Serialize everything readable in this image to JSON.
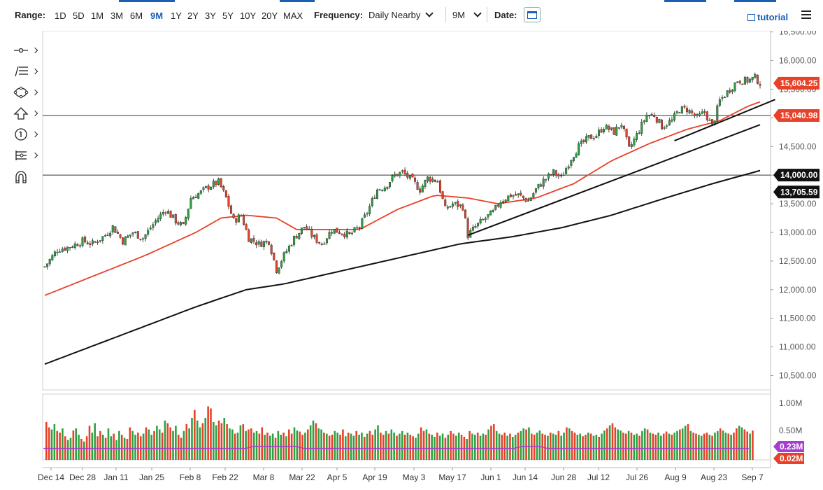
{
  "toolbar": {
    "range_label": "Range:",
    "ranges": [
      "1D",
      "5D",
      "1M",
      "3M",
      "6M",
      "9M",
      "1Y",
      "2Y",
      "3Y",
      "5Y",
      "10Y",
      "20Y",
      "MAX"
    ],
    "active_range": "9M",
    "frequency_label": "Frequency:",
    "frequency_value": "Daily Nearby",
    "period_value": "9M",
    "date_label": "Date:",
    "tutorial_label": "tutorial",
    "accent_color": "#1a5fb4"
  },
  "drawing_tools": [
    "line-tool-icon",
    "fib-tool-icon",
    "shape-tool-icon",
    "arrow-up-icon",
    "number-marker-icon",
    "node-tool-icon",
    "magnet-icon"
  ],
  "chart_data": {
    "type": "candlestick",
    "title": "",
    "x_ticks": [
      "Dec 14",
      "Dec 28",
      "Jan 11",
      "Jan 25",
      "Feb 8",
      "Feb 22",
      "Mar 8",
      "Mar 22",
      "Apr 5",
      "Apr 19",
      "May 3",
      "May 17",
      "Jun 1",
      "Jun 14",
      "Jun 28",
      "Jul 12",
      "Jul 26",
      "Aug 9",
      "Aug 23",
      "Sep 7"
    ],
    "y_ticks": [
      "16,500.00",
      "16,000.00",
      "15,500.00",
      "15,000.00",
      "14,500.00",
      "14,000.00",
      "13,500.00",
      "13,000.00",
      "12,500.00",
      "12,000.00",
      "11,500.00",
      "11,000.00",
      "10,500.00"
    ],
    "y_range": [
      10250,
      16520
    ],
    "up_color": "#2ea043",
    "down_color": "#e8412a",
    "price_close_path": [
      [
        0,
        12400
      ],
      [
        5,
        12700
      ],
      [
        10,
        12750
      ],
      [
        15,
        12850
      ],
      [
        19,
        12800
      ],
      [
        24,
        12950
      ],
      [
        27,
        13100
      ],
      [
        31,
        12850
      ],
      [
        35,
        13000
      ],
      [
        39,
        12900
      ],
      [
        44,
        13200
      ],
      [
        48,
        13400
      ],
      [
        52,
        13200
      ],
      [
        55,
        13100
      ],
      [
        58,
        13600
      ],
      [
        62,
        13700
      ],
      [
        65,
        13800
      ],
      [
        69,
        13880
      ],
      [
        72,
        13600
      ],
      [
        75,
        13200
      ],
      [
        78,
        13300
      ],
      [
        81,
        12900
      ],
      [
        85,
        12800
      ],
      [
        89,
        12850
      ],
      [
        92,
        12350
      ],
      [
        95,
        12600
      ],
      [
        99,
        12900
      ],
      [
        103,
        13100
      ],
      [
        107,
        12900
      ],
      [
        110,
        12800
      ],
      [
        114,
        13050
      ],
      [
        118,
        13000
      ],
      [
        121,
        12950
      ],
      [
        125,
        13100
      ],
      [
        128,
        13350
      ],
      [
        132,
        13750
      ],
      [
        135,
        13800
      ],
      [
        139,
        14000
      ],
      [
        142,
        14050
      ],
      [
        146,
        13900
      ],
      [
        149,
        13750
      ],
      [
        152,
        13950
      ],
      [
        156,
        13900
      ],
      [
        159,
        13400
      ],
      [
        162,
        13500
      ],
      [
        166,
        13450
      ],
      [
        168,
        12950
      ],
      [
        171,
        13100
      ],
      [
        175,
        13250
      ],
      [
        178,
        13350
      ],
      [
        181,
        13550
      ],
      [
        185,
        13650
      ],
      [
        188,
        13650
      ],
      [
        192,
        13550
      ],
      [
        195,
        13750
      ],
      [
        198,
        13900
      ],
      [
        202,
        14050
      ],
      [
        205,
        13950
      ],
      [
        209,
        14300
      ],
      [
        212,
        14500
      ],
      [
        216,
        14650
      ],
      [
        219,
        14700
      ],
      [
        222,
        14850
      ],
      [
        226,
        14750
      ],
      [
        229,
        14900
      ],
      [
        232,
        14450
      ],
      [
        235,
        14700
      ],
      [
        239,
        15050
      ],
      [
        242,
        15050
      ],
      [
        245,
        14850
      ],
      [
        249,
        14950
      ],
      [
        252,
        15150
      ],
      [
        255,
        15150
      ],
      [
        259,
        15000
      ],
      [
        262,
        15100
      ],
      [
        265,
        14850
      ],
      [
        268,
        15300
      ],
      [
        272,
        15500
      ],
      [
        275,
        15650
      ],
      [
        279,
        15650
      ],
      [
        282,
        15700
      ],
      [
        284,
        15604
      ]
    ],
    "volume_axis_label": "1.00M",
    "volume_axis_label_2": "0.50M",
    "volume_levels": [
      0.72,
      0.62,
      0.58,
      0.68,
      0.55,
      0.52,
      0.6,
      0.45,
      0.38,
      0.42,
      0.56,
      0.6,
      0.48,
      0.4,
      0.35,
      0.45,
      0.65,
      0.52,
      0.7,
      0.45,
      0.55,
      0.48,
      0.42,
      0.6,
      0.45,
      0.5,
      0.38,
      0.55,
      0.48,
      0.42,
      0.4,
      0.62,
      0.55,
      0.48,
      0.52,
      0.45,
      0.5,
      0.62,
      0.58,
      0.48,
      0.55,
      0.65,
      0.58,
      0.52,
      0.75,
      0.7,
      0.62,
      0.55,
      0.65,
      0.48,
      0.42,
      0.55,
      0.68,
      0.6,
      0.8,
      0.95,
      0.75,
      0.62,
      0.7,
      0.8,
      1.02,
      0.98,
      0.72,
      0.66,
      0.75,
      0.7,
      0.8,
      0.68,
      0.6,
      0.58,
      0.5,
      0.52,
      0.66,
      0.68,
      0.55,
      0.58,
      0.6,
      0.52,
      0.55,
      0.5,
      0.62,
      0.48,
      0.52,
      0.46,
      0.5,
      0.42,
      0.55,
      0.48,
      0.52,
      0.45,
      0.58,
      0.5,
      0.62,
      0.56,
      0.54,
      0.48,
      0.52,
      0.58,
      0.66,
      0.75,
      0.7,
      0.6,
      0.58,
      0.52,
      0.5,
      0.46,
      0.48,
      0.55,
      0.52,
      0.48,
      0.58,
      0.45,
      0.52,
      0.5,
      0.46,
      0.55,
      0.48,
      0.52,
      0.44,
      0.5,
      0.55,
      0.48,
      0.58,
      0.66,
      0.52,
      0.48,
      0.55,
      0.5,
      0.58,
      0.52,
      0.46,
      0.5,
      0.55,
      0.48,
      0.52,
      0.48,
      0.45,
      0.42,
      0.5,
      0.62,
      0.55,
      0.58,
      0.5,
      0.48,
      0.44,
      0.52,
      0.46,
      0.5,
      0.42,
      0.48,
      0.55,
      0.5,
      0.46,
      0.52,
      0.48,
      0.44,
      0.4,
      0.55,
      0.5,
      0.48,
      0.52,
      0.46,
      0.5,
      0.48,
      0.58,
      0.65,
      0.68,
      0.55,
      0.5,
      0.48,
      0.52,
      0.46,
      0.5,
      0.44,
      0.48,
      0.52,
      0.55,
      0.6,
      0.58,
      0.62,
      0.5,
      0.48,
      0.52,
      0.56,
      0.5,
      0.48,
      0.46,
      0.52,
      0.5,
      0.48,
      0.55,
      0.46,
      0.52,
      0.62,
      0.6,
      0.55,
      0.52,
      0.48,
      0.5,
      0.45,
      0.48,
      0.52,
      0.5,
      0.46,
      0.48,
      0.44,
      0.5,
      0.56,
      0.6,
      0.66,
      0.7,
      0.62,
      0.58,
      0.56,
      0.52,
      0.5,
      0.55,
      0.52,
      0.48,
      0.5,
      0.46,
      0.55,
      0.6,
      0.58,
      0.52,
      0.5,
      0.48,
      0.52,
      0.46,
      0.5,
      0.54,
      0.5,
      0.48,
      0.52,
      0.55,
      0.58,
      0.6,
      0.65,
      0.68,
      0.55,
      0.52,
      0.5,
      0.48,
      0.46,
      0.5,
      0.52,
      0.48,
      0.46,
      0.52,
      0.55,
      0.6,
      0.56,
      0.52,
      0.5,
      0.48,
      0.52,
      0.6,
      0.65,
      0.62,
      0.58,
      0.54,
      0.5,
      0.56
    ],
    "moving_avg_fast": [
      [
        0,
        11900
      ],
      [
        20,
        12250
      ],
      [
        40,
        12600
      ],
      [
        60,
        13000
      ],
      [
        70,
        13250
      ],
      [
        80,
        13300
      ],
      [
        92,
        13250
      ],
      [
        100,
        13050
      ],
      [
        110,
        13050
      ],
      [
        125,
        13050
      ],
      [
        140,
        13400
      ],
      [
        155,
        13650
      ],
      [
        168,
        13600
      ],
      [
        180,
        13500
      ],
      [
        195,
        13600
      ],
      [
        210,
        13850
      ],
      [
        225,
        14250
      ],
      [
        240,
        14550
      ],
      [
        255,
        14800
      ],
      [
        268,
        14950
      ],
      [
        279,
        15200
      ],
      [
        284,
        15280
      ]
    ],
    "moving_avg_slow": [
      [
        0,
        10700
      ],
      [
        30,
        11200
      ],
      [
        60,
        11700
      ],
      [
        80,
        12000
      ],
      [
        95,
        12100
      ],
      [
        110,
        12250
      ],
      [
        125,
        12400
      ],
      [
        145,
        12600
      ],
      [
        165,
        12800
      ],
      [
        185,
        12920
      ],
      [
        205,
        13080
      ],
      [
        225,
        13300
      ],
      [
        245,
        13580
      ],
      [
        265,
        13850
      ],
      [
        284,
        14080
      ]
    ],
    "trendlines": [
      [
        [
          168,
          12950
        ],
        [
          284,
          14880
        ]
      ],
      [
        [
          250,
          14600
        ],
        [
          290,
          15320
        ]
      ]
    ],
    "horizontal_levels": [
      15040.98,
      14000.0
    ],
    "price_tags": [
      {
        "text": "15,604.25",
        "value": 15604.25,
        "color": "#e8412a"
      },
      {
        "text": "15,040.98",
        "value": 15040.98,
        "color": "#e8412a"
      },
      {
        "text": "14,000.00",
        "value": 14000.0,
        "color": "#111111"
      },
      {
        "text": "13,705.59",
        "value": 13705.59,
        "color": "#111111"
      }
    ],
    "volume_tags": [
      {
        "text": "0.23M",
        "color": "#a83dd1"
      },
      {
        "text": "0.02M",
        "color": "#e8412a"
      }
    ]
  }
}
